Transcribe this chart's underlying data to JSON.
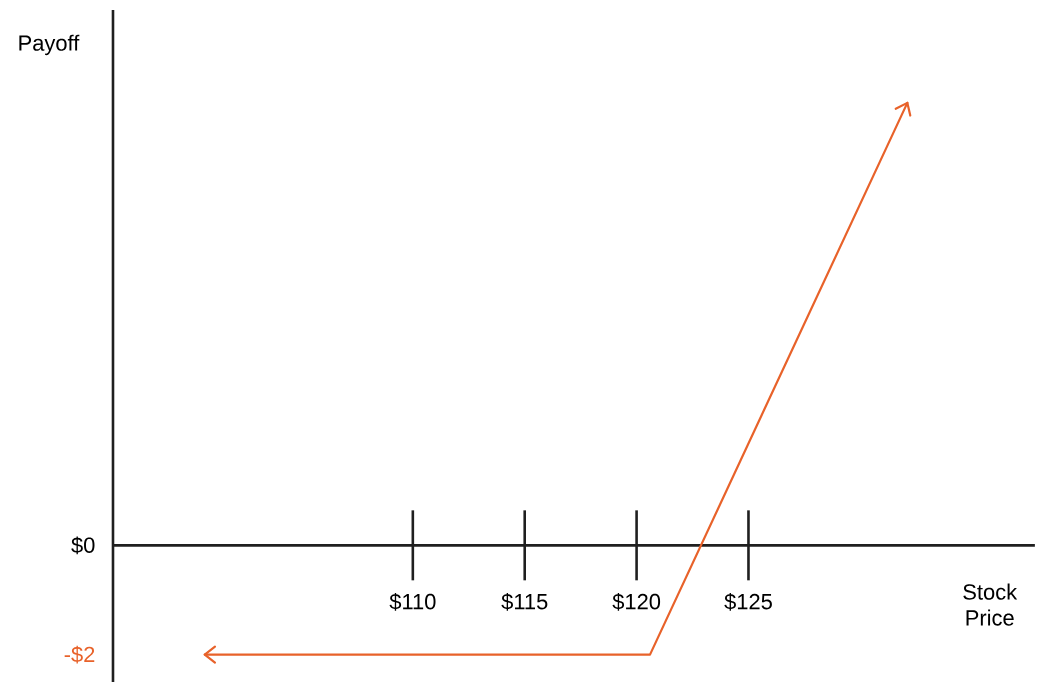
{
  "chart_data": {
    "type": "line",
    "xlabel": "Stock Price",
    "ylabel": "Payoff",
    "x": [
      100.7,
      120.6,
      132.1
    ],
    "series": [
      {
        "color": "#e8622a",
        "values": [
          -2,
          -2,
          8.1
        ]
      }
    ],
    "xlim": [
      96.6,
      137.8
    ],
    "ylim": [
      -2.5,
      9.8
    ],
    "xticks": [
      {
        "value": 110,
        "label": "$110"
      },
      {
        "value": 115,
        "label": "$115"
      },
      {
        "value": 120,
        "label": "$120"
      },
      {
        "value": 125,
        "label": "$125"
      }
    ],
    "yticks": [
      {
        "value": 0,
        "label": "$0"
      },
      {
        "value": -2,
        "label": "-$2"
      }
    ]
  }
}
